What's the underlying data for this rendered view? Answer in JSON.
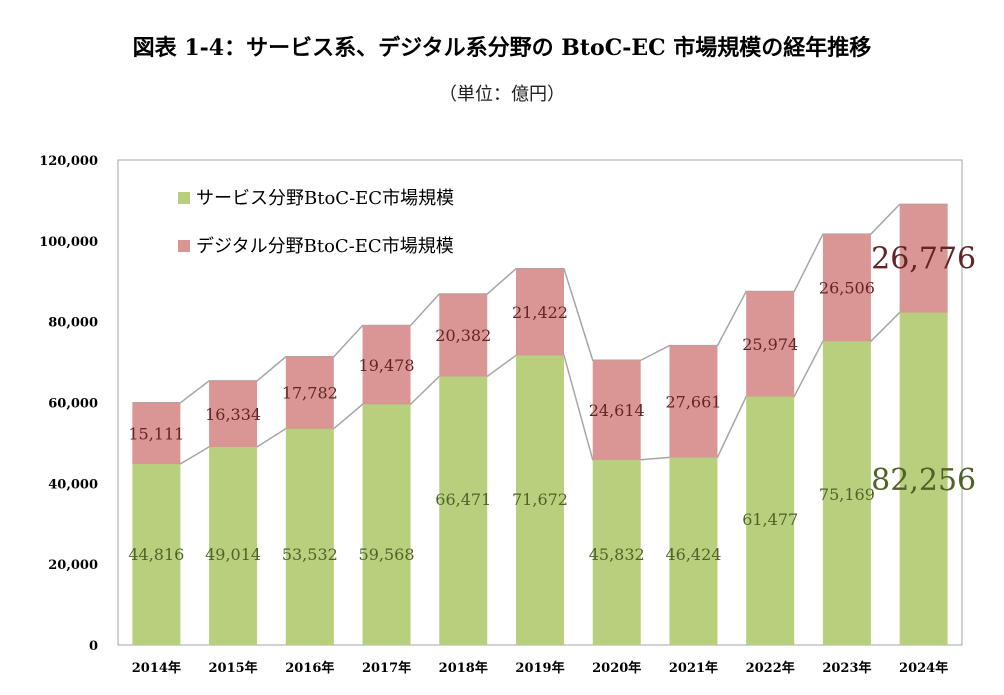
{
  "title": "図表 1-4：サービス系、デジタル系分野の BtoC-EC 市場規模の経年推移",
  "subtitle": "（単位：億円）",
  "colors": {
    "service": "#b8cf7e",
    "digital": "#d99694",
    "service_label": "#4f6228",
    "digital_label": "#632523",
    "connector": "#a6a6a6",
    "frame": "#a6a6a6"
  },
  "chart_data": {
    "type": "bar",
    "stacked": true,
    "categories": [
      "2014年",
      "2015年",
      "2016年",
      "2017年",
      "2018年",
      "2019年",
      "2020年",
      "2021年",
      "2022年",
      "2023年",
      "2024年"
    ],
    "series": [
      {
        "name": "サービス分野BtoC-EC市場規模",
        "values": [
          44816,
          49014,
          53532,
          59568,
          66471,
          71672,
          45832,
          46424,
          61477,
          75169,
          82256
        ],
        "labels": [
          "44,816",
          "49,014",
          "53,532",
          "59,568",
          "66,471",
          "71,672",
          "45,832",
          "46,424",
          "61,477",
          "75,169",
          "82,256"
        ]
      },
      {
        "name": "デジタル分野BtoC-EC市場規模",
        "values": [
          15111,
          16334,
          17782,
          19478,
          20382,
          21422,
          24614,
          27661,
          25974,
          26506,
          26776
        ],
        "labels": [
          "15,111",
          "16,334",
          "17,782",
          "19,478",
          "20,382",
          "21,422",
          "24,614",
          "27,661",
          "25,974",
          "26,506",
          "26,776"
        ]
      }
    ],
    "ylim": [
      0,
      120000
    ],
    "yticks": [
      0,
      20000,
      40000,
      60000,
      80000,
      100000,
      120000
    ],
    "ytick_labels": [
      "0",
      "20,000",
      "40,000",
      "60,000",
      "80,000",
      "100,000",
      "120,000"
    ],
    "grid": false,
    "legend_position": "top-left",
    "connector_lines": true
  }
}
